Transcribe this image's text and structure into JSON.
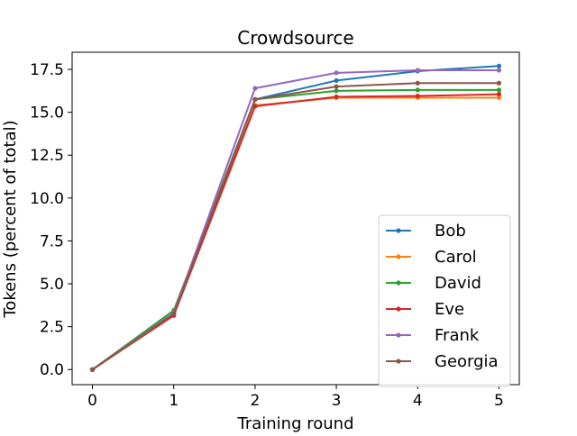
{
  "chart_data": {
    "type": "line",
    "title": "Crowdsource",
    "xlabel": "Training round",
    "ylabel": "Tokens (percent of total)",
    "x": [
      0,
      1,
      2,
      3,
      4,
      5
    ],
    "xlim": [
      -0.25,
      5.25
    ],
    "ylim": [
      -0.88,
      18.5
    ],
    "xticks": [
      "0",
      "1",
      "2",
      "3",
      "4",
      "5"
    ],
    "yticks": [
      "0.0",
      "2.5",
      "5.0",
      "7.5",
      "10.0",
      "12.5",
      "15.0",
      "17.5"
    ],
    "grid": false,
    "legend_position": "lower right",
    "series": [
      {
        "name": "Bob",
        "color": "#1f77b4",
        "values": [
          0,
          3.25,
          15.75,
          16.85,
          17.4,
          17.7
        ]
      },
      {
        "name": "Carol",
        "color": "#ff7f0e",
        "values": [
          0,
          3.2,
          15.4,
          15.85,
          15.85,
          15.85
        ]
      },
      {
        "name": "David",
        "color": "#2ca02c",
        "values": [
          0,
          3.45,
          15.75,
          16.25,
          16.3,
          16.3
        ]
      },
      {
        "name": "Eve",
        "color": "#d62728",
        "values": [
          0,
          3.15,
          15.35,
          15.9,
          15.95,
          16.05
        ]
      },
      {
        "name": "Frank",
        "color": "#9467bd",
        "values": [
          0,
          3.3,
          16.4,
          17.3,
          17.45,
          17.45
        ]
      },
      {
        "name": "Georgia",
        "color": "#8c564b",
        "values": [
          0,
          3.25,
          15.75,
          16.5,
          16.7,
          16.7
        ]
      }
    ]
  }
}
